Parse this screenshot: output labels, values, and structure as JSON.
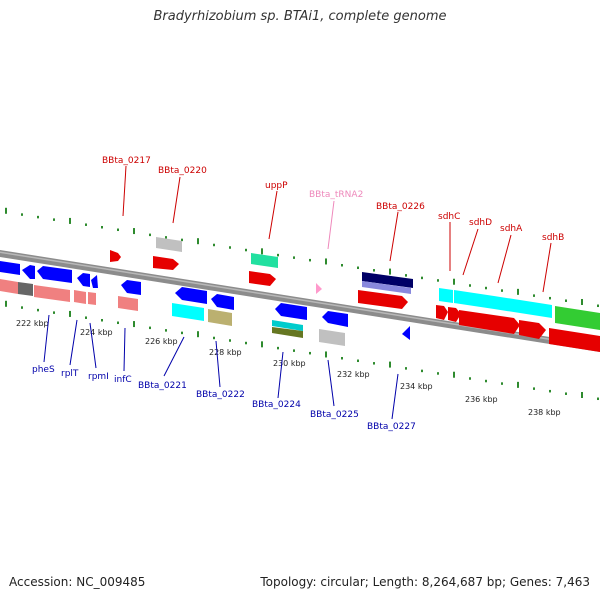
{
  "title": "Bradyrhizobium sp. BTAi1, complete genome",
  "accession": "Accession: NC_009485",
  "summary": "Topology: circular; Length: 8,264,687 bp; Genes: 7,463",
  "colors": {
    "backbone": "#8c8c8c",
    "tick": "#2e8b2e",
    "top_label": "#cc0000",
    "bottom_label": "#0000aa",
    "trna_label": "#ee88bb"
  },
  "scale_ticks": [
    "222 kbp",
    "224 kbp",
    "226 kbp",
    "228 kbp",
    "230 kbp",
    "232 kbp",
    "234 kbp",
    "236 kbp",
    "238 kbp"
  ],
  "top_labels": [
    "BBta_0217",
    "BBta_0220",
    "uppP",
    "BBta_tRNA2",
    "BBta_0226",
    "sdhC",
    "sdhD",
    "sdhA",
    "sdhB"
  ],
  "bottom_labels": [
    "pheS",
    "rplT",
    "rpmI",
    "infC",
    "BBta_0221",
    "BBta_0222",
    "BBta_0224",
    "BBta_0225",
    "BBta_0227"
  ]
}
